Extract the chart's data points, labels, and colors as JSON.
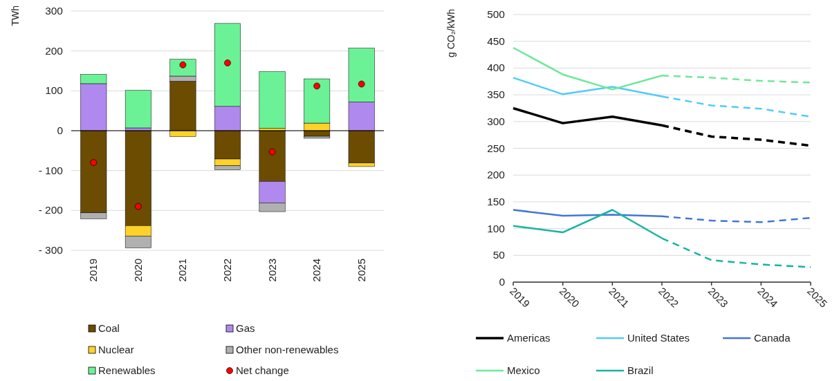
{
  "chart_data": [
    {
      "type": "bar",
      "stacked": true,
      "ylabel": "TWh",
      "categories": [
        "2019",
        "2020",
        "2021",
        "2022",
        "2023",
        "2024",
        "2025"
      ],
      "ylim": [
        -300,
        300
      ],
      "yticks": [
        {
          "value": -300,
          "label": "- 300"
        },
        {
          "value": -200,
          "label": "- 200"
        },
        {
          "value": -100,
          "label": "- 100"
        },
        0,
        100,
        200,
        300
      ],
      "grid": "y",
      "legend": "bottom",
      "series": [
        {
          "name": "Coal",
          "color": "#6b4c00",
          "values": [
            -206,
            -238,
            124,
            -71,
            -127,
            -14,
            -81
          ]
        },
        {
          "name": "Gas",
          "color": "#b089ee",
          "values": [
            118,
            7,
            null,
            61,
            -54,
            null,
            72
          ]
        },
        {
          "name": "Nuclear",
          "color": "#fdd22a",
          "values": [
            null,
            -26,
            -15,
            -17,
            6,
            19,
            -9
          ]
        },
        {
          "name": "Other non-renewables",
          "color": "#b0b0b0",
          "values": [
            -15,
            -30,
            13,
            -10,
            -22,
            -5,
            null
          ]
        },
        {
          "name": "Renewables",
          "color": "#6cf296",
          "values": [
            23,
            94,
            42,
            208,
            142,
            111,
            135
          ]
        },
        {
          "name": "Net change",
          "type": "scatter",
          "marker": "circle",
          "color": "#ff0000",
          "values": [
            -80,
            -190,
            165,
            170,
            -53,
            112,
            117
          ]
        }
      ]
    },
    {
      "type": "line",
      "ylabel": "g CO₂/kWh",
      "x": [
        2019,
        2020,
        2021,
        2022,
        2023,
        2024,
        2025
      ],
      "xlim": [
        2019,
        2025
      ],
      "xticks": [
        2019,
        2020,
        2021,
        2022,
        2023,
        2024,
        2025
      ],
      "ylim": [
        0,
        500
      ],
      "yticks": [
        0,
        50,
        100,
        150,
        200,
        250,
        300,
        350,
        400,
        450,
        500
      ],
      "grid": "y",
      "legend": "bottom",
      "line_style": "solid",
      "series": [
        {
          "name": "Americas",
          "color": "#000000",
          "values": [
            325,
            297,
            309,
            293,
            null,
            null,
            null
          ]
        },
        {
          "color": "#000000",
          "line_style": "dashed",
          "values": [
            null,
            null,
            null,
            293,
            272,
            266,
            255
          ]
        },
        {
          "name": "United States",
          "color": "#4fcbf8",
          "values": [
            382,
            351,
            365,
            347,
            null,
            null,
            null
          ]
        },
        {
          "color": "#4fcbf8",
          "line_style": "dashed",
          "values": [
            null,
            null,
            null,
            347,
            330,
            324,
            309
          ]
        },
        {
          "name": "Canada",
          "color": "#4176d8",
          "values": [
            135,
            124,
            126,
            123,
            null,
            null,
            null
          ]
        },
        {
          "color": "#4176d8",
          "line_style": "dashed",
          "values": [
            null,
            null,
            null,
            123,
            115,
            112,
            120
          ]
        },
        {
          "name": "Mexico",
          "color": "#6de89a",
          "values": [
            438,
            388,
            360,
            386,
            null,
            null,
            null
          ]
        },
        {
          "color": "#6de89a",
          "line_style": "dashed",
          "values": [
            null,
            null,
            null,
            386,
            382,
            376,
            373
          ]
        },
        {
          "name": "Brazil",
          "color": "#16b3a3",
          "values": [
            105,
            93,
            135,
            82,
            null,
            null,
            null
          ]
        },
        {
          "color": "#16b3a3",
          "line_style": "dashed",
          "values": [
            null,
            null,
            null,
            82,
            41,
            33,
            28
          ]
        }
      ]
    }
  ]
}
